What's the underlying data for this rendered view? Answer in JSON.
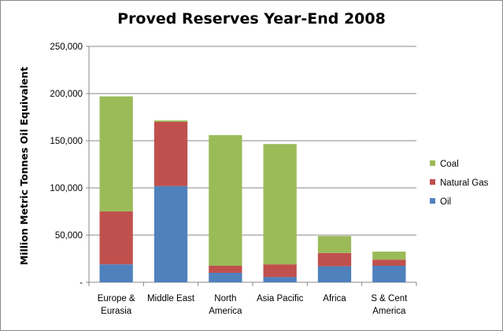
{
  "chart_data": {
    "type": "bar",
    "stacked": true,
    "title": "Proved Reserves Year-End 2008",
    "ylabel": "Million Metric Tonnes Oil Equivalent",
    "xlabel": "",
    "ylim": [
      0,
      250000
    ],
    "yticks": [
      0,
      50000,
      100000,
      150000,
      200000,
      250000
    ],
    "ytick_labels": [
      "-",
      "50,000",
      "100,000",
      "150,000",
      "200,000",
      "250,000"
    ],
    "grid": true,
    "legend_position": "right",
    "categories": [
      [
        "Europe &",
        "Eurasia"
      ],
      [
        "Middle East"
      ],
      [
        "North",
        "America"
      ],
      [
        "Asia Pacific"
      ],
      [
        "Africa"
      ],
      [
        "S & Cent",
        "America"
      ]
    ],
    "series": [
      {
        "name": "Oil",
        "color": "#4f81bd",
        "values": [
          19000,
          102000,
          10000,
          5500,
          17000,
          17500
        ]
      },
      {
        "name": "Natural Gas",
        "color": "#c0504d",
        "values": [
          56000,
          68000,
          7500,
          13500,
          14000,
          6500
        ]
      },
      {
        "name": "Coal",
        "color": "#9bbb59",
        "values": [
          122000,
          1500,
          138500,
          127500,
          18000,
          8500
        ]
      }
    ],
    "legend_order": [
      "Coal",
      "Natural Gas",
      "Oil"
    ]
  }
}
